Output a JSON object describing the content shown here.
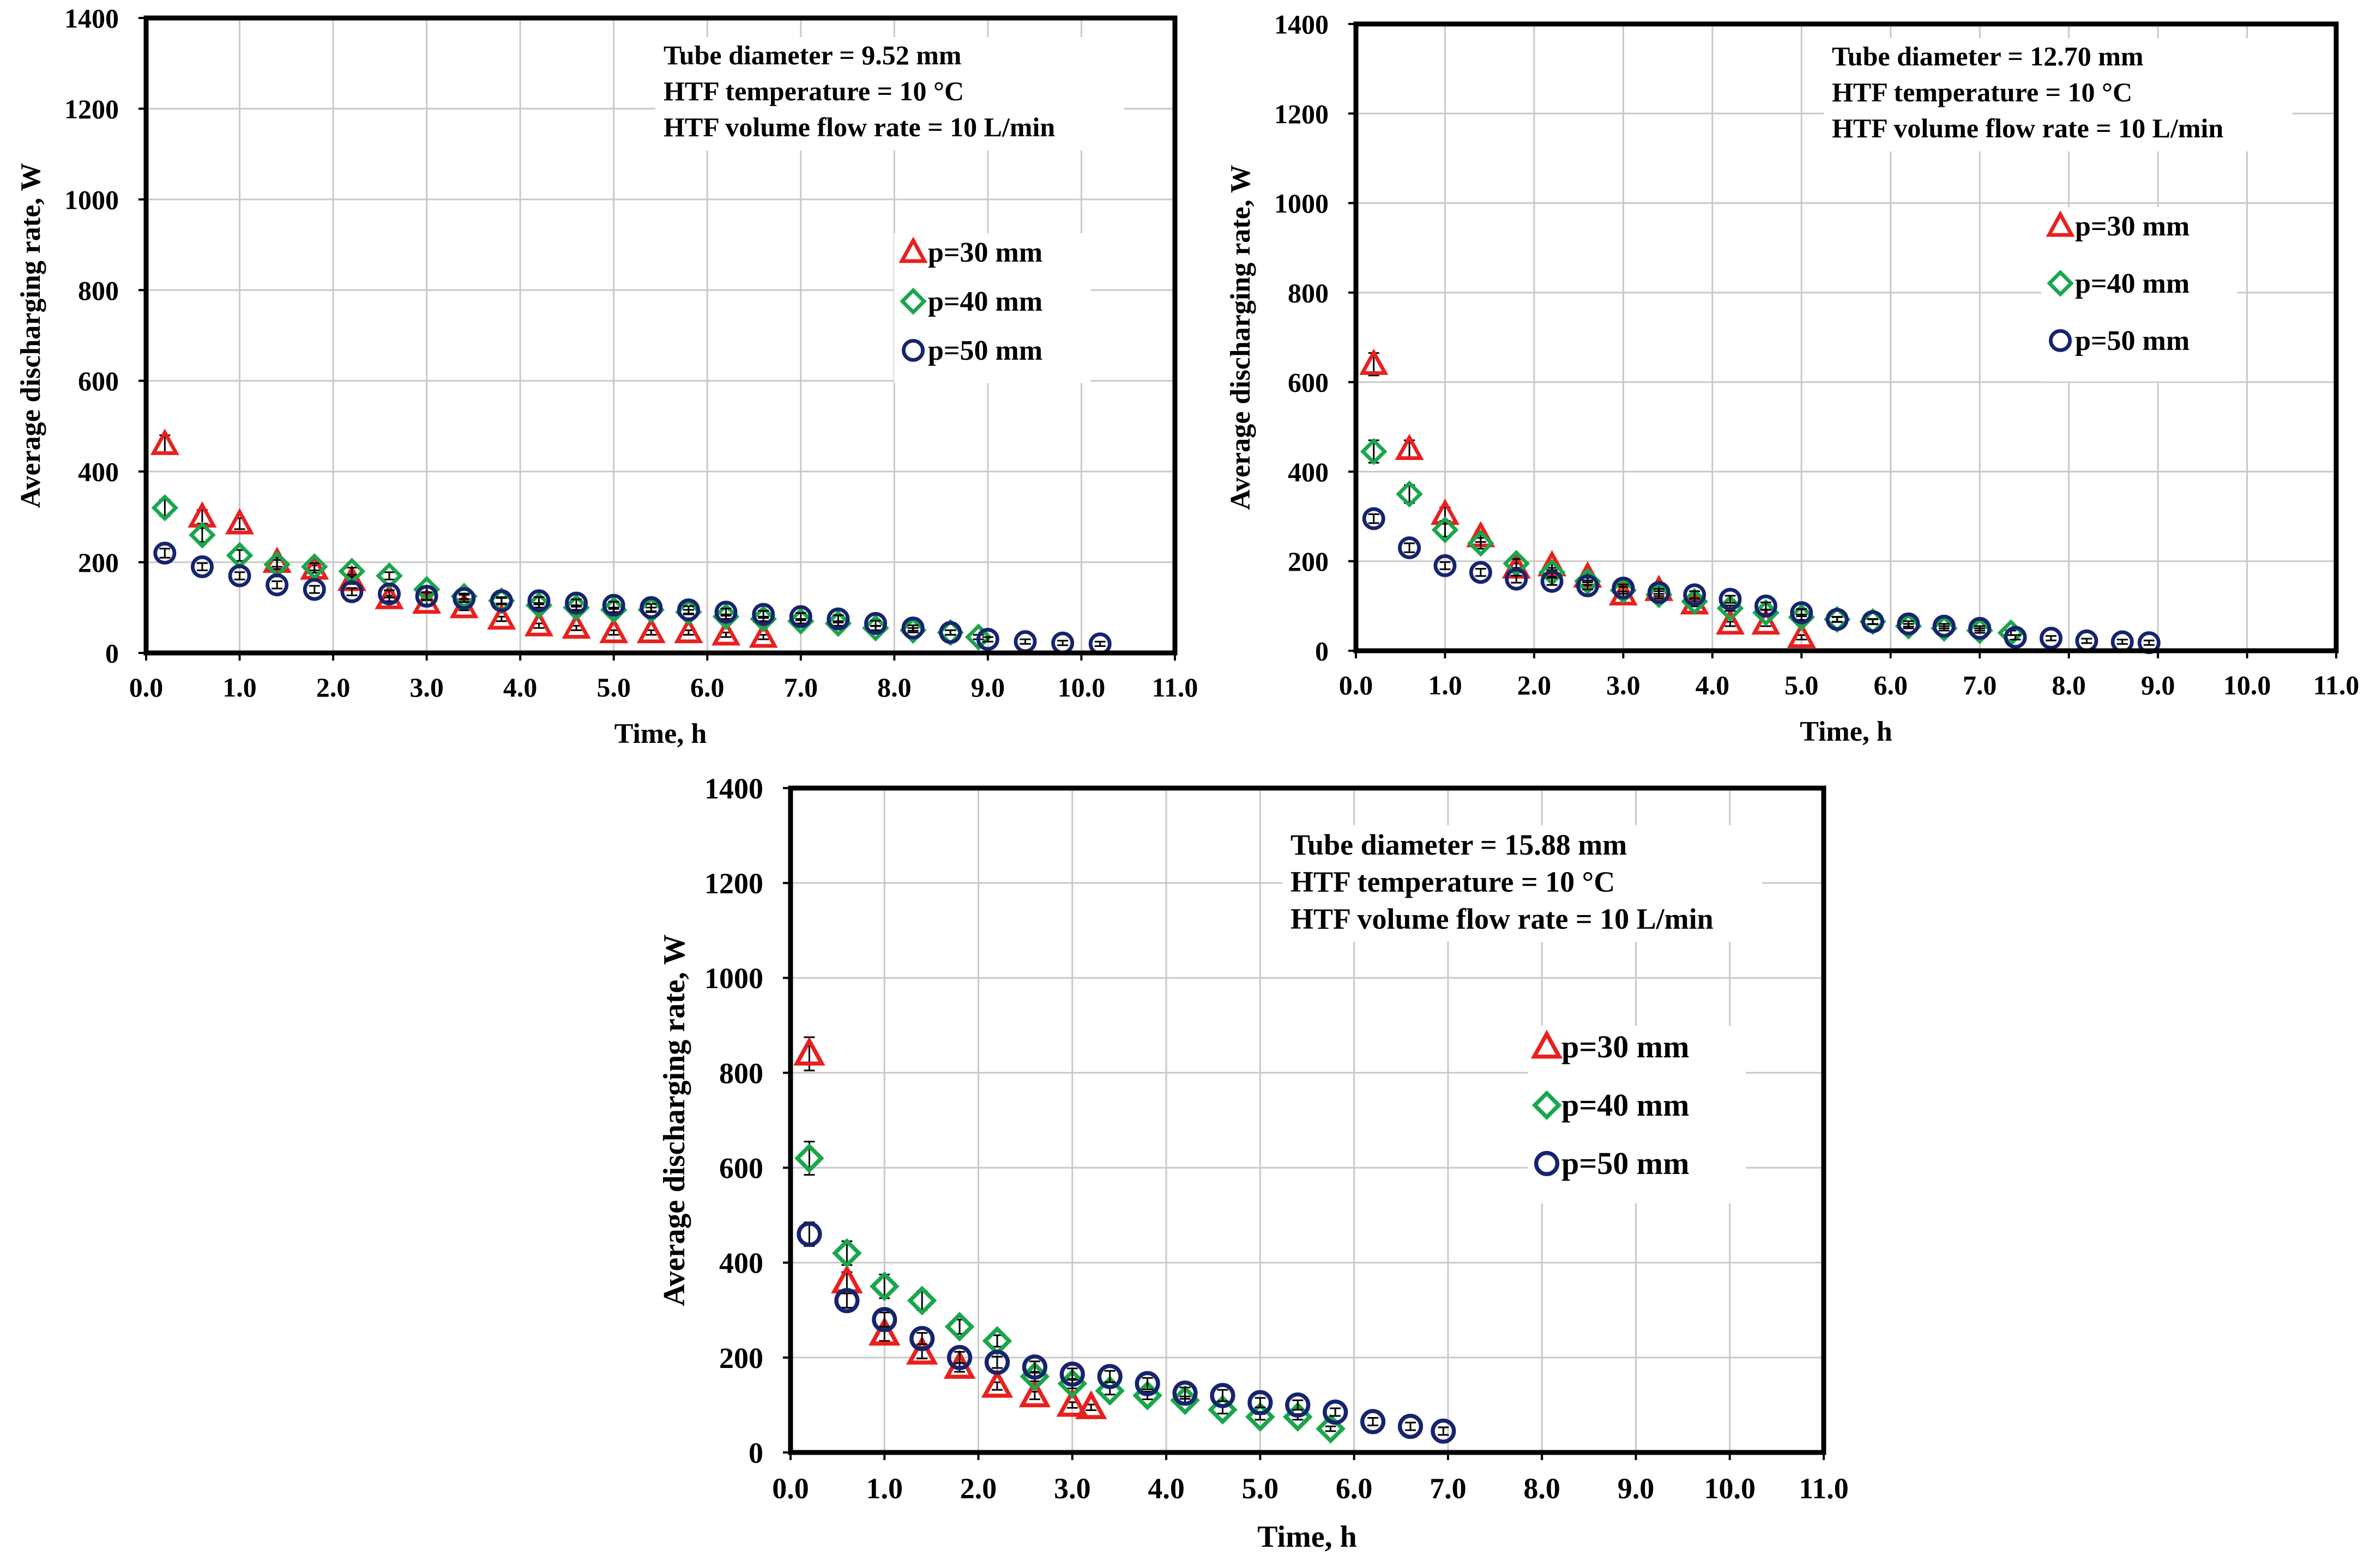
{
  "chart_data": [
    {
      "type": "scatter",
      "annotation": [
        "Tube diameter = 9.52 mm",
        "HTF temperature = 10 °C",
        "HTF volume flow rate = 10 L/min"
      ],
      "xlabel": "Time, h",
      "ylabel": "Average discharging rate, W",
      "xlim": [
        0,
        11
      ],
      "ylim": [
        0,
        1400
      ],
      "xticks": [
        "0.0",
        "1.0",
        "2.0",
        "3.0",
        "4.0",
        "5.0",
        "6.0",
        "7.0",
        "8.0",
        "9.0",
        "10.0",
        "11.0"
      ],
      "yticks": [
        "0",
        "200",
        "400",
        "600",
        "800",
        "1000",
        "1200",
        "1400"
      ],
      "grid": true,
      "legend_position": "right",
      "series": [
        {
          "name": "p=30 mm",
          "marker": "triangle",
          "color": "#e8201e",
          "x": [
            0.2,
            0.6,
            1.0,
            1.4,
            1.8,
            2.2,
            2.6,
            3.0,
            3.4,
            3.8,
            4.2,
            4.6,
            5.0,
            5.4,
            5.8,
            6.2,
            6.6
          ],
          "y": [
            460,
            300,
            285,
            200,
            185,
            160,
            120,
            110,
            100,
            75,
            60,
            55,
            45,
            45,
            45,
            40,
            35
          ],
          "err": [
            20,
            15,
            12,
            10,
            8,
            8,
            6,
            6,
            6,
            5,
            5,
            5,
            5,
            5,
            5,
            5,
            5
          ]
        },
        {
          "name": "p=40 mm",
          "marker": "diamond",
          "color": "#1aa64a",
          "x": [
            0.2,
            0.6,
            1.0,
            1.4,
            1.8,
            2.2,
            2.6,
            3.0,
            3.4,
            3.8,
            4.2,
            4.6,
            5.0,
            5.4,
            5.8,
            6.2,
            6.6,
            7.0,
            7.4,
            7.8,
            8.2,
            8.6,
            8.9
          ],
          "y": [
            320,
            260,
            215,
            195,
            190,
            180,
            170,
            140,
            125,
            115,
            105,
            100,
            95,
            95,
            90,
            80,
            75,
            70,
            65,
            55,
            50,
            45,
            35
          ],
          "err": [
            18,
            15,
            12,
            10,
            8,
            8,
            8,
            6,
            6,
            6,
            5,
            5,
            5,
            5,
            5,
            5,
            5,
            5,
            5,
            5,
            5,
            5,
            5
          ]
        },
        {
          "name": "p=50 mm",
          "marker": "circle",
          "color": "#16246e",
          "x": [
            0.2,
            0.6,
            1.0,
            1.4,
            1.8,
            2.2,
            2.6,
            3.0,
            3.4,
            3.8,
            4.2,
            4.6,
            5.0,
            5.4,
            5.8,
            6.2,
            6.6,
            7.0,
            7.4,
            7.8,
            8.2,
            8.6,
            9.0,
            9.4,
            9.8,
            10.2
          ],
          "y": [
            220,
            190,
            170,
            150,
            140,
            135,
            130,
            125,
            120,
            115,
            115,
            110,
            105,
            100,
            95,
            90,
            85,
            80,
            75,
            65,
            55,
            45,
            30,
            25,
            22,
            20
          ],
          "err": [
            10,
            8,
            8,
            8,
            8,
            8,
            8,
            8,
            8,
            8,
            8,
            8,
            8,
            8,
            8,
            8,
            8,
            8,
            8,
            6,
            6,
            5,
            5,
            5,
            5,
            5
          ]
        }
      ]
    },
    {
      "type": "scatter",
      "annotation": [
        "Tube diameter = 12.70 mm",
        "HTF temperature = 10 °C",
        "HTF volume flow rate = 10 L/min"
      ],
      "xlabel": "Time, h",
      "ylabel": "Average discharging rate, W",
      "xlim": [
        0,
        11
      ],
      "ylim": [
        0,
        1400
      ],
      "xticks": [
        "0.0",
        "1.0",
        "2.0",
        "3.0",
        "4.0",
        "5.0",
        "6.0",
        "7.0",
        "8.0",
        "9.0",
        "10.0",
        "11.0"
      ],
      "yticks": [
        "0",
        "200",
        "400",
        "600",
        "800",
        "1000",
        "1200",
        "1400"
      ],
      "grid": true,
      "legend_position": "right",
      "series": [
        {
          "name": "p=30 mm",
          "marker": "triangle",
          "color": "#e8201e",
          "x": [
            0.2,
            0.6,
            1.0,
            1.4,
            1.8,
            2.2,
            2.6,
            3.0,
            3.4,
            3.8,
            4.2,
            4.6,
            5.0
          ],
          "y": [
            640,
            450,
            305,
            255,
            185,
            190,
            165,
            125,
            135,
            105,
            60,
            60,
            30
          ],
          "err": [
            25,
            20,
            15,
            12,
            10,
            10,
            8,
            8,
            8,
            6,
            5,
            5,
            5
          ]
        },
        {
          "name": "p=40 mm",
          "marker": "diamond",
          "color": "#1aa64a",
          "x": [
            0.2,
            0.6,
            1.0,
            1.4,
            1.8,
            2.2,
            2.6,
            3.0,
            3.4,
            3.8,
            4.2,
            4.6,
            5.0,
            5.4,
            5.8,
            6.2,
            6.6,
            7.0,
            7.35
          ],
          "y": [
            445,
            350,
            270,
            240,
            195,
            175,
            155,
            135,
            125,
            110,
            95,
            85,
            75,
            70,
            65,
            55,
            50,
            45,
            40
          ],
          "err": [
            25,
            20,
            15,
            12,
            10,
            10,
            8,
            8,
            8,
            6,
            6,
            6,
            6,
            5,
            5,
            5,
            5,
            5,
            5
          ]
        },
        {
          "name": "p=50 mm",
          "marker": "circle",
          "color": "#16246e",
          "x": [
            0.2,
            0.6,
            1.0,
            1.4,
            1.8,
            2.2,
            2.6,
            3.0,
            3.4,
            3.8,
            4.2,
            4.6,
            5.0,
            5.4,
            5.8,
            6.2,
            6.6,
            7.0,
            7.4,
            7.8,
            8.2,
            8.6,
            8.9
          ],
          "y": [
            295,
            230,
            190,
            175,
            160,
            155,
            145,
            140,
            130,
            125,
            115,
            100,
            85,
            70,
            65,
            60,
            55,
            50,
            30,
            28,
            22,
            20,
            18
          ],
          "err": [
            10,
            10,
            8,
            8,
            8,
            8,
            8,
            8,
            8,
            8,
            8,
            8,
            8,
            6,
            6,
            6,
            5,
            5,
            5,
            5,
            5,
            5,
            5
          ]
        }
      ]
    },
    {
      "type": "scatter",
      "annotation": [
        "Tube diameter = 15.88 mm",
        "HTF temperature = 10 °C",
        "HTF volume flow rate = 10 L/min"
      ],
      "xlabel": "Time, h",
      "ylabel": "Average discharging rate, W",
      "xlim": [
        0,
        11
      ],
      "ylim": [
        0,
        1400
      ],
      "xticks": [
        "0.0",
        "1.0",
        "2.0",
        "3.0",
        "4.0",
        "5.0",
        "6.0",
        "7.0",
        "8.0",
        "9.0",
        "10.0",
        "11.0"
      ],
      "yticks": [
        "0",
        "200",
        "400",
        "600",
        "800",
        "1000",
        "1200",
        "1400"
      ],
      "grid": true,
      "legend_position": "right",
      "series": [
        {
          "name": "p=30 mm",
          "marker": "triangle",
          "color": "#e8201e",
          "x": [
            0.2,
            0.6,
            1.0,
            1.4,
            1.8,
            2.2,
            2.6,
            3.0,
            3.2
          ],
          "y": [
            840,
            360,
            250,
            210,
            180,
            140,
            120,
            100,
            95
          ],
          "err": [
            35,
            20,
            15,
            12,
            10,
            8,
            8,
            6,
            6
          ]
        },
        {
          "name": "p=40 mm",
          "marker": "diamond",
          "color": "#1aa64a",
          "x": [
            0.2,
            0.6,
            1.0,
            1.4,
            1.8,
            2.2,
            2.6,
            3.0,
            3.4,
            3.8,
            4.2,
            4.6,
            5.0,
            5.4,
            5.75
          ],
          "y": [
            620,
            420,
            350,
            320,
            265,
            235,
            160,
            145,
            130,
            120,
            110,
            90,
            75,
            75,
            50
          ],
          "err": [
            35,
            25,
            25,
            20,
            15,
            12,
            10,
            10,
            8,
            8,
            8,
            8,
            6,
            6,
            5
          ]
        },
        {
          "name": "p=50 mm",
          "marker": "circle",
          "color": "#16246e",
          "x": [
            0.2,
            0.6,
            1.0,
            1.4,
            1.8,
            2.2,
            2.6,
            3.0,
            3.4,
            3.8,
            4.2,
            4.6,
            5.0,
            5.4,
            5.8,
            6.2,
            6.6,
            6.95
          ],
          "y": [
            460,
            320,
            280,
            240,
            200,
            190,
            180,
            165,
            160,
            145,
            125,
            120,
            105,
            100,
            85,
            65,
            55,
            45
          ],
          "err": [
            25,
            15,
            15,
            12,
            12,
            12,
            12,
            12,
            12,
            12,
            12,
            12,
            10,
            10,
            8,
            8,
            8,
            8
          ]
        }
      ]
    }
  ]
}
